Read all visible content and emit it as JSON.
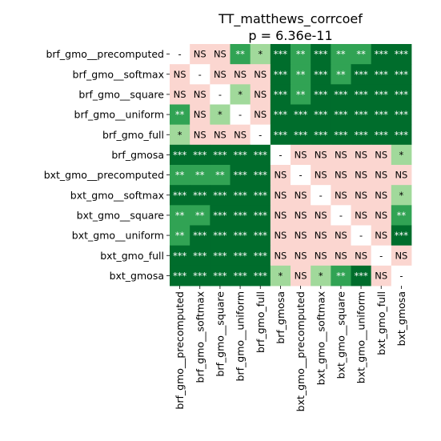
{
  "chart_data": {
    "type": "heatmap",
    "title": "TT_matthews_corrcoef",
    "subtitle": "p = 6.36e-11",
    "labels": [
      "brf_gmo__precomputed",
      "brf_gmo__softmax",
      "brf_gmo__square",
      "brf_gmo__uniform",
      "brf_gmo_full",
      "brf_gmosa",
      "bxt_gmo__precomputed",
      "bxt_gmo__softmax",
      "bxt_gmo__square",
      "bxt_gmo__uniform",
      "bxt_gmo_full",
      "bxt_gmosa"
    ],
    "matrix": [
      [
        "-",
        "NS",
        "NS",
        "**",
        "*",
        "***",
        "**",
        "***",
        "**",
        "**",
        "***",
        "***"
      ],
      [
        "NS",
        "-",
        "NS",
        "NS",
        "NS",
        "***",
        "**",
        "***",
        "**",
        "***",
        "***",
        "***"
      ],
      [
        "NS",
        "NS",
        "-",
        "*",
        "NS",
        "***",
        "**",
        "***",
        "***",
        "***",
        "***",
        "***"
      ],
      [
        "**",
        "NS",
        "*",
        "-",
        "NS",
        "***",
        "***",
        "***",
        "***",
        "***",
        "***",
        "***"
      ],
      [
        "*",
        "NS",
        "NS",
        "NS",
        "-",
        "***",
        "***",
        "***",
        "***",
        "***",
        "***",
        "***"
      ],
      [
        "***",
        "***",
        "***",
        "***",
        "***",
        "-",
        "NS",
        "NS",
        "NS",
        "NS",
        "NS",
        "*"
      ],
      [
        "**",
        "**",
        "**",
        "***",
        "***",
        "NS",
        "-",
        "NS",
        "NS",
        "NS",
        "NS",
        "NS"
      ],
      [
        "***",
        "***",
        "***",
        "***",
        "***",
        "NS",
        "NS",
        "-",
        "NS",
        "NS",
        "NS",
        "*"
      ],
      [
        "**",
        "**",
        "***",
        "***",
        "***",
        "NS",
        "NS",
        "NS",
        "-",
        "NS",
        "NS",
        "**"
      ],
      [
        "**",
        "***",
        "***",
        "***",
        "***",
        "NS",
        "NS",
        "NS",
        "NS",
        "-",
        "NS",
        "***"
      ],
      [
        "***",
        "***",
        "***",
        "***",
        "***",
        "NS",
        "NS",
        "NS",
        "NS",
        "NS",
        "-",
        "NS"
      ],
      [
        "***",
        "***",
        "***",
        "***",
        "***",
        "*",
        "NS",
        "*",
        "**",
        "***",
        "NS",
        "-"
      ]
    ],
    "colors": {
      "-": "#ffffff",
      "NS": "#fbd6d0",
      "*": "#a1d99b",
      "**": "#31a354",
      "***": "#006d2c"
    },
    "text_colors": {
      "-": "#000000",
      "NS": "#000000",
      "*": "#000000",
      "**": "#ffffff",
      "***": "#ffffff"
    }
  }
}
